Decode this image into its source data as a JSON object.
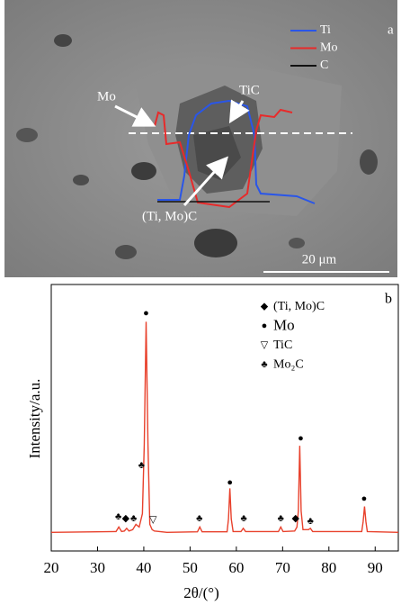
{
  "sem_image": {
    "panel_label": "a",
    "legend": [
      {
        "name": "Ti",
        "color": "#2a56e8"
      },
      {
        "name": "Mo",
        "color": "#e82a2a"
      },
      {
        "name": "C",
        "color": "#111111"
      }
    ],
    "labels": [
      "Mo",
      "TiC",
      "(Ti, Mo)C"
    ],
    "scale_bar": "20 μm"
  },
  "chart_data": {
    "type": "line",
    "panel_label": "b",
    "xlabel": "2θ/(°)",
    "ylabel": "Intensity/a.u.",
    "xlim": [
      20,
      95
    ],
    "xticks": [
      20,
      30,
      40,
      50,
      60,
      70,
      80,
      90
    ],
    "ylim": [
      0,
      100
    ],
    "color": "#e8412c",
    "x": [
      20,
      34,
      34.6,
      35.2,
      35.8,
      36.3,
      36.8,
      37.6,
      38.3,
      39,
      39.7,
      40.1,
      40.5,
      40.9,
      41.3,
      41.8,
      42.3,
      45,
      51.6,
      52.1,
      52.6,
      58,
      58.3,
      58.6,
      58.9,
      59.3,
      61,
      61.5,
      62,
      69.1,
      69.6,
      70.1,
      72.6,
      73.1,
      73.4,
      73.7,
      74,
      74.4,
      75.6,
      76,
      76.5,
      87.1,
      87.4,
      87.7,
      88,
      88.3,
      95
    ],
    "values": [
      7,
      7.3,
      9,
      7.3,
      7.5,
      8.5,
      7.5,
      8,
      10,
      9,
      14,
      40,
      86,
      40,
      10,
      8,
      7.5,
      7,
      7.2,
      9,
      7.2,
      7.2,
      12,
      23.5,
      12,
      7.3,
      7.3,
      8.5,
      7.3,
      7.3,
      9,
      7.3,
      7.5,
      9,
      15,
      39.5,
      15,
      8,
      8,
      8.5,
      7.3,
      7.3,
      11,
      16.7,
      11,
      7.3,
      7
    ],
    "legend": [
      {
        "symbol": "◆",
        "label": "(Ti, Mo)C"
      },
      {
        "symbol": "●",
        "label": "Mo"
      },
      {
        "symbol": "▽",
        "label": "TiC"
      },
      {
        "symbol": "♣",
        "label": "Mo₂C"
      }
    ],
    "markers": [
      {
        "symbol": "♣",
        "x": 34.5,
        "y": 12.6
      },
      {
        "symbol": "◆",
        "x": 36.1,
        "y": 12
      },
      {
        "symbol": "♣",
        "x": 37.8,
        "y": 12
      },
      {
        "symbol": "♣",
        "x": 39.5,
        "y": 32
      },
      {
        "symbol": "●",
        "x": 40.5,
        "y": 89
      },
      {
        "symbol": "▽",
        "x": 42,
        "y": 11.5
      },
      {
        "symbol": "♣",
        "x": 52,
        "y": 12
      },
      {
        "symbol": "●",
        "x": 58.6,
        "y": 25.5
      },
      {
        "symbol": "♣",
        "x": 61.6,
        "y": 12
      },
      {
        "symbol": "♣",
        "x": 69.6,
        "y": 12
      },
      {
        "symbol": "◆",
        "x": 72.8,
        "y": 12
      },
      {
        "symbol": "●",
        "x": 73.9,
        "y": 42
      },
      {
        "symbol": "♣",
        "x": 76,
        "y": 11
      },
      {
        "symbol": "●",
        "x": 87.6,
        "y": 19.5
      }
    ]
  }
}
